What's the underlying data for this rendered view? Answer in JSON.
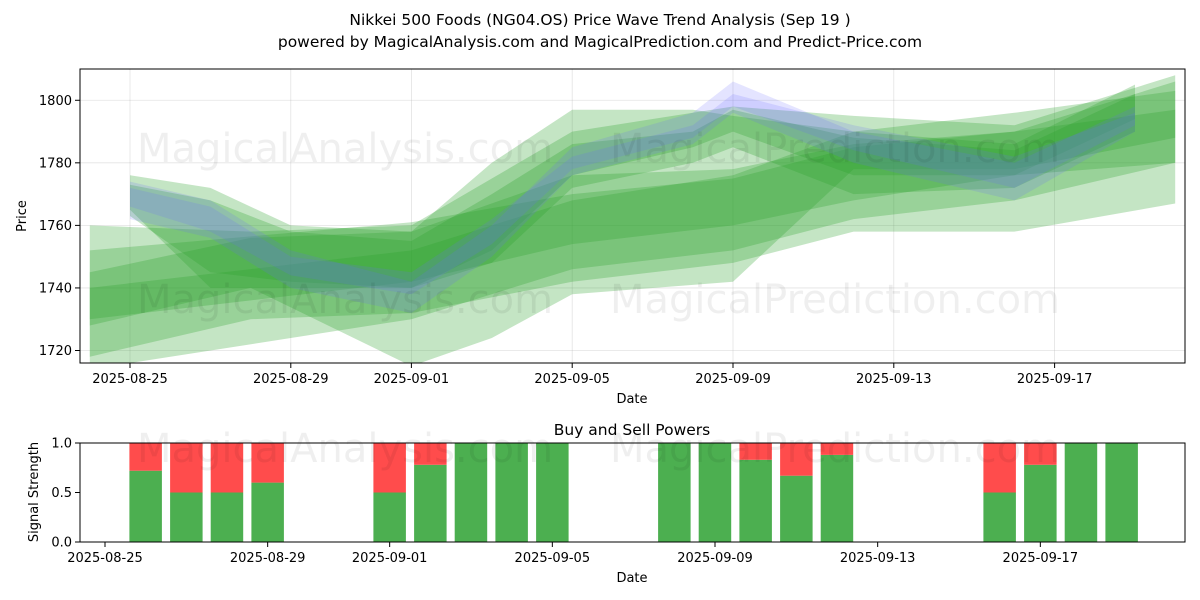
{
  "chart_data": [
    {
      "type": "area",
      "title": "Nikkei 500 Foods (NG04.OS) Price Wave Trend Analysis (Sep 19 )",
      "subtitle": "powered by MagicalAnalysis.com and MagicalPrediction.com and Predict-Price.com",
      "xlabel": "Date",
      "ylabel": "Price",
      "x_ticks": [
        "2025-08-25",
        "2025-08-29",
        "2025-09-01",
        "2025-09-05",
        "2025-09-09",
        "2025-09-13",
        "2025-09-17"
      ],
      "y_ticks": [
        1720,
        1740,
        1760,
        1780,
        1800
      ],
      "ylim": [
        1716,
        1810
      ],
      "grid": true,
      "colors": {
        "green_band": "#2ca02c",
        "blue_band": "#6b6bff"
      },
      "bands": [
        {
          "color": "green",
          "x": [
            "2025-08-24",
            "2025-09-01",
            "2025-09-05",
            "2025-09-09",
            "2025-09-12",
            "2025-09-16",
            "2025-09-20"
          ],
          "upper": [
            1752,
            1761,
            1770,
            1775,
            1785,
            1790,
            1806
          ],
          "lower": [
            1730,
            1742,
            1754,
            1760,
            1768,
            1776,
            1780
          ]
        },
        {
          "color": "green",
          "x": [
            "2025-08-24",
            "2025-09-01",
            "2025-09-05",
            "2025-09-09",
            "2025-09-12",
            "2025-09-16",
            "2025-09-20"
          ],
          "upper": [
            1740,
            1752,
            1768,
            1776,
            1790,
            1796,
            1803
          ],
          "lower": [
            1714,
            1730,
            1746,
            1752,
            1762,
            1768,
            1780
          ]
        },
        {
          "color": "green",
          "x": [
            "2025-08-24",
            "2025-08-28",
            "2025-09-01",
            "2025-09-05",
            "2025-09-09",
            "2025-09-12",
            "2025-09-16",
            "2025-09-20"
          ],
          "upper": [
            1745,
            1756,
            1758,
            1776,
            1778,
            1786,
            1790,
            1797
          ],
          "lower": [
            1718,
            1730,
            1732,
            1742,
            1748,
            1758,
            1758,
            1767
          ]
        },
        {
          "color": "green",
          "x": [
            "2025-08-24",
            "2025-08-28",
            "2025-09-01",
            "2025-09-03",
            "2025-09-05",
            "2025-09-09",
            "2025-09-12",
            "2025-09-16",
            "2025-09-20"
          ],
          "upper": [
            1760,
            1758,
            1760,
            1775,
            1790,
            1798,
            1795,
            1792,
            1808
          ],
          "lower": [
            1728,
            1740,
            1715,
            1724,
            1738,
            1742,
            1778,
            1778,
            1788
          ]
        },
        {
          "color": "green",
          "x": [
            "2025-08-25",
            "2025-08-27",
            "2025-08-29",
            "2025-09-01",
            "2025-09-03",
            "2025-09-05",
            "2025-09-08",
            "2025-09-09",
            "2025-09-12",
            "2025-09-16",
            "2025-09-19"
          ],
          "upper": [
            1776,
            1772,
            1760,
            1758,
            1780,
            1797,
            1797,
            1795,
            1790,
            1786,
            1805
          ],
          "lower": [
            1765,
            1740,
            1740,
            1740,
            1748,
            1772,
            1780,
            1785,
            1770,
            1772,
            1790
          ]
        },
        {
          "color": "green",
          "x": [
            "2025-08-25",
            "2025-08-27",
            "2025-08-29",
            "2025-09-01",
            "2025-09-03",
            "2025-09-05",
            "2025-09-08",
            "2025-09-09",
            "2025-09-12",
            "2025-09-16",
            "2025-09-19"
          ],
          "upper": [
            1773,
            1768,
            1758,
            1755,
            1770,
            1786,
            1790,
            1797,
            1788,
            1784,
            1802
          ],
          "lower": [
            1763,
            1745,
            1742,
            1740,
            1752,
            1776,
            1785,
            1790,
            1776,
            1776,
            1794
          ]
        },
        {
          "color": "blue",
          "x": [
            "2025-08-25",
            "2025-08-27",
            "2025-08-29",
            "2025-09-01",
            "2025-09-03",
            "2025-09-05",
            "2025-09-08",
            "2025-09-09",
            "2025-09-12",
            "2025-09-16",
            "2025-09-19"
          ],
          "upper": [
            1774,
            1768,
            1752,
            1742,
            1760,
            1785,
            1796,
            1806,
            1790,
            1780,
            1798
          ],
          "lower": [
            1762,
            1756,
            1740,
            1732,
            1750,
            1776,
            1786,
            1796,
            1780,
            1768,
            1790
          ]
        },
        {
          "color": "blue",
          "x": [
            "2025-08-25",
            "2025-08-27",
            "2025-08-29",
            "2025-09-01",
            "2025-09-03",
            "2025-09-05",
            "2025-09-08",
            "2025-09-09",
            "2025-09-12",
            "2025-09-16",
            "2025-09-19"
          ],
          "upper": [
            1772,
            1766,
            1750,
            1745,
            1762,
            1782,
            1792,
            1802,
            1792,
            1782,
            1796
          ],
          "lower": [
            1766,
            1758,
            1744,
            1738,
            1754,
            1778,
            1788,
            1798,
            1784,
            1772,
            1792
          ]
        }
      ],
      "watermarks": [
        "MagicalAnalysis.com",
        "MagicalPrediction.com"
      ]
    },
    {
      "type": "bar",
      "title": "Buy and Sell Powers",
      "xlabel": "Date",
      "ylabel": "Signal Strength",
      "x_ticks": [
        "2025-08-25",
        "2025-08-29",
        "2025-09-01",
        "2025-09-05",
        "2025-09-09",
        "2025-09-13",
        "2025-09-17"
      ],
      "y_ticks": [
        "0.0",
        "0.5",
        "1.0"
      ],
      "ylim": [
        0,
        1
      ],
      "colors": {
        "buy": "#4caf50",
        "sell": "#ff4c4c"
      },
      "series": [
        {
          "values": [
            0.72,
            0.5,
            0.5,
            0.6,
            0.5,
            0.78,
            1.0,
            1.0,
            1.0,
            1.0,
            1.0,
            0.83,
            0.67,
            0.88,
            0.5,
            0.78,
            1.0,
            1.0
          ]
        },
        {
          "values": [
            0.28,
            0.5,
            0.5,
            0.4,
            0.5,
            0.22,
            0.0,
            0.0,
            0.0,
            0.0,
            0.0,
            0.17,
            0.33,
            0.12,
            0.5,
            0.22,
            0.0,
            0.0
          ]
        }
      ],
      "x": [
        "2025-08-26",
        "2025-08-27",
        "2025-08-28",
        "2025-08-29",
        "2025-09-01",
        "2025-09-02",
        "2025-09-03",
        "2025-09-04",
        "2025-09-05",
        "2025-09-08",
        "2025-09-09",
        "2025-09-10",
        "2025-09-11",
        "2025-09-12",
        "2025-09-16",
        "2025-09-17",
        "2025-09-18",
        "2025-09-19"
      ],
      "watermarks": [
        "MagicalAnalysis.com",
        "MagicalPrediction.com"
      ]
    }
  ]
}
